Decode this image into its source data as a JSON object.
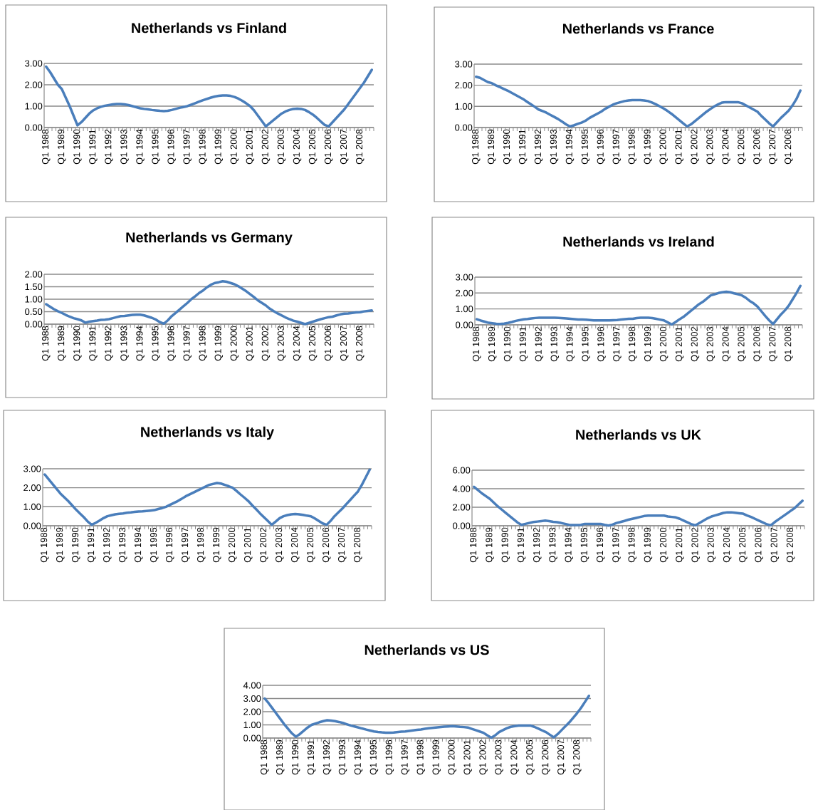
{
  "chart_data": [
    {
      "type": "line",
      "title": "Netherlands vs Finland",
      "color": "#4a7ebb",
      "grid": "y",
      "ylim": [
        0,
        3
      ],
      "yticks": [
        {
          "value": 0,
          "label": "0.00"
        },
        {
          "value": 1,
          "label": "1.00"
        },
        {
          "value": 2,
          "label": "2.00"
        },
        {
          "value": 3,
          "label": "3.00"
        }
      ],
      "categories": [
        "Q1 1988",
        null,
        null,
        null,
        "Q1 1989",
        null,
        null,
        null,
        "Q1 1990",
        null,
        null,
        null,
        "Q1 1991",
        null,
        null,
        null,
        "Q1 1992",
        null,
        null,
        null,
        "Q1 1993",
        null,
        null,
        null,
        "Q1 1994",
        null,
        null,
        null,
        "Q1 1995",
        null,
        null,
        null,
        "Q1 1996",
        null,
        null,
        null,
        "Q1 1997",
        null,
        null,
        null,
        "Q1 1998",
        null,
        null,
        null,
        "Q1 1999",
        null,
        null,
        null,
        "Q1 2000",
        null,
        null,
        null,
        "Q1 2001",
        null,
        null,
        null,
        "Q1 2002",
        null,
        null,
        null,
        "Q1 2003",
        null,
        null,
        null,
        "Q1 2004",
        null,
        null,
        null,
        "Q1 2005",
        null,
        null,
        null,
        "Q1 2006",
        null,
        null,
        null,
        "Q1 2007",
        null,
        null,
        null,
        "Q1 2008",
        null,
        null,
        null
      ],
      "values": [
        2.85,
        2.6,
        2.3,
        2.0,
        1.8,
        1.4,
        1.0,
        0.55,
        0.1,
        0.25,
        0.45,
        0.65,
        0.8,
        0.9,
        0.97,
        1.02,
        1.05,
        1.08,
        1.1,
        1.1,
        1.08,
        1.05,
        1.0,
        0.95,
        0.9,
        0.87,
        0.85,
        0.82,
        0.8,
        0.78,
        0.77,
        0.78,
        0.82,
        0.87,
        0.92,
        0.96,
        1.0,
        1.07,
        1.14,
        1.21,
        1.28,
        1.34,
        1.4,
        1.45,
        1.48,
        1.5,
        1.5,
        1.48,
        1.43,
        1.35,
        1.25,
        1.13,
        1.0,
        0.8,
        0.55,
        0.3,
        0.05,
        0.2,
        0.35,
        0.5,
        0.65,
        0.75,
        0.82,
        0.87,
        0.88,
        0.87,
        0.82,
        0.72,
        0.6,
        0.45,
        0.28,
        0.12,
        0.05,
        0.25,
        0.45,
        0.65,
        0.85,
        1.1,
        1.35,
        1.6,
        1.85,
        2.1,
        2.4,
        2.7
      ]
    },
    {
      "type": "line",
      "title": "Netherlands vs France",
      "color": "#4a7ebb",
      "grid": "y",
      "ylim": [
        0,
        3
      ],
      "yticks": [
        {
          "value": 0,
          "label": "0.00"
        },
        {
          "value": 1,
          "label": "1.00"
        },
        {
          "value": 2,
          "label": "2.00"
        },
        {
          "value": 3,
          "label": "3.00"
        }
      ],
      "categories": [
        "Q1 1988",
        null,
        null,
        null,
        "Q1 1989",
        null,
        null,
        null,
        "Q1 1990",
        null,
        null,
        null,
        "Q1 1991",
        null,
        null,
        null,
        "Q1 1992",
        null,
        null,
        null,
        "Q1 1993",
        null,
        null,
        null,
        "Q1 1994",
        null,
        null,
        null,
        "Q1 1995",
        null,
        null,
        null,
        "Q1 1996",
        null,
        null,
        null,
        "Q1 1997",
        null,
        null,
        null,
        "Q1 1998",
        null,
        null,
        null,
        "Q1 1999",
        null,
        null,
        null,
        "Q1 2000",
        null,
        null,
        null,
        "Q1 2001",
        null,
        null,
        null,
        "Q1 2002",
        null,
        null,
        null,
        "Q1 2003",
        null,
        null,
        null,
        "Q1 2004",
        null,
        null,
        null,
        "Q1 2005",
        null,
        null,
        null,
        "Q1 2006",
        null,
        null,
        null,
        "Q1 2007",
        null,
        null,
        null,
        "Q1 2008",
        null,
        null,
        null
      ],
      "values": [
        2.4,
        2.35,
        2.25,
        2.15,
        2.1,
        2.0,
        1.92,
        1.83,
        1.75,
        1.65,
        1.55,
        1.45,
        1.35,
        1.22,
        1.1,
        0.98,
        0.85,
        0.78,
        0.7,
        0.6,
        0.5,
        0.4,
        0.28,
        0.15,
        0.05,
        0.1,
        0.17,
        0.23,
        0.32,
        0.45,
        0.55,
        0.65,
        0.75,
        0.88,
        0.98,
        1.08,
        1.15,
        1.2,
        1.25,
        1.28,
        1.3,
        1.3,
        1.3,
        1.28,
        1.25,
        1.18,
        1.1,
        1.0,
        0.9,
        0.78,
        0.65,
        0.5,
        0.35,
        0.2,
        0.05,
        0.15,
        0.3,
        0.45,
        0.6,
        0.75,
        0.88,
        1.0,
        1.1,
        1.18,
        1.2,
        1.2,
        1.2,
        1.2,
        1.15,
        1.05,
        0.95,
        0.85,
        0.75,
        0.55,
        0.38,
        0.2,
        0.05,
        0.25,
        0.45,
        0.62,
        0.8,
        1.05,
        1.35,
        1.75
      ]
    },
    {
      "type": "line",
      "title": "Netherlands vs Germany",
      "color": "#4a7ebb",
      "grid": "y",
      "ylim": [
        0,
        2
      ],
      "yticks": [
        {
          "value": 0,
          "label": "0.00"
        },
        {
          "value": 0.5,
          "label": "0.50"
        },
        {
          "value": 1,
          "label": "1.00"
        },
        {
          "value": 1.5,
          "label": "1.50"
        },
        {
          "value": 2,
          "label": "2.00"
        }
      ],
      "categories": [
        "Q1 1988",
        null,
        null,
        null,
        "Q1 1989",
        null,
        null,
        null,
        "Q1 1990",
        null,
        null,
        null,
        "Q1 1991",
        null,
        null,
        null,
        "Q1 1992",
        null,
        null,
        null,
        "Q1 1993",
        null,
        null,
        null,
        "Q1 1994",
        null,
        null,
        null,
        "Q1 1995",
        null,
        null,
        null,
        "Q1 1996",
        null,
        null,
        null,
        "Q1 1997",
        null,
        null,
        null,
        "Q1 1998",
        null,
        null,
        null,
        "Q1 1999",
        null,
        null,
        null,
        "Q1 2000",
        null,
        null,
        null,
        "Q1 2001",
        null,
        null,
        null,
        "Q1 2002",
        null,
        null,
        null,
        "Q1 2003",
        null,
        null,
        null,
        "Q1 2004",
        null,
        null,
        null,
        "Q1 2005",
        null,
        null,
        null,
        "Q1 2006",
        null,
        null,
        null,
        "Q1 2007",
        null,
        null,
        null,
        "Q1 2008",
        null,
        null,
        null
      ],
      "values": [
        0.8,
        0.7,
        0.6,
        0.52,
        0.45,
        0.37,
        0.3,
        0.24,
        0.2,
        0.15,
        0.06,
        0.1,
        0.12,
        0.14,
        0.17,
        0.18,
        0.2,
        0.24,
        0.28,
        0.32,
        0.33,
        0.35,
        0.37,
        0.38,
        0.38,
        0.35,
        0.3,
        0.25,
        0.18,
        0.08,
        0.02,
        0.15,
        0.32,
        0.45,
        0.58,
        0.72,
        0.85,
        1.0,
        1.12,
        1.25,
        1.35,
        1.48,
        1.58,
        1.65,
        1.68,
        1.72,
        1.7,
        1.65,
        1.6,
        1.52,
        1.42,
        1.32,
        1.2,
        1.08,
        0.95,
        0.85,
        0.75,
        0.62,
        0.52,
        0.43,
        0.35,
        0.27,
        0.2,
        0.14,
        0.1,
        0.05,
        0.0,
        0.05,
        0.1,
        0.15,
        0.2,
        0.24,
        0.28,
        0.3,
        0.35,
        0.39,
        0.42,
        0.43,
        0.45,
        0.47,
        0.48,
        0.51,
        0.53,
        0.55
      ]
    },
    {
      "type": "line",
      "title": "Netherlands vs Ireland",
      "color": "#4a7ebb",
      "grid": "y",
      "ylim": [
        0,
        3
      ],
      "yticks": [
        {
          "value": 0,
          "label": "0.00"
        },
        {
          "value": 1,
          "label": "1.00"
        },
        {
          "value": 2,
          "label": "2.00"
        },
        {
          "value": 3,
          "label": "3.00"
        }
      ],
      "categories": [
        "Q1 1988",
        null,
        null,
        null,
        "Q1 1989",
        null,
        null,
        null,
        "Q1 1990",
        null,
        null,
        null,
        "Q1 1991",
        null,
        null,
        null,
        "Q1 1992",
        null,
        null,
        null,
        "Q1 1993",
        null,
        null,
        null,
        "Q1 1994",
        null,
        null,
        null,
        "Q1 1995",
        null,
        null,
        null,
        "Q1 1996",
        null,
        null,
        null,
        "Q1 1997",
        null,
        null,
        null,
        "Q1 1998",
        null,
        null,
        null,
        "Q1 1999",
        null,
        null,
        null,
        "Q1 2000",
        null,
        null,
        null,
        "Q1 2001",
        null,
        null,
        null,
        "Q1 2002",
        null,
        null,
        null,
        "Q1 2003",
        null,
        null,
        null,
        "Q1 2004",
        null,
        null,
        null,
        "Q1 2005",
        null,
        null,
        null,
        "Q1 2006",
        null,
        null,
        null,
        "Q1 2007",
        null,
        null,
        null,
        "Q1 2008",
        null,
        null,
        null
      ],
      "values": [
        0.35,
        0.27,
        0.2,
        0.13,
        0.1,
        0.07,
        0.05,
        0.08,
        0.12,
        0.18,
        0.25,
        0.3,
        0.35,
        0.37,
        0.4,
        0.43,
        0.45,
        0.45,
        0.45,
        0.45,
        0.45,
        0.44,
        0.42,
        0.4,
        0.38,
        0.36,
        0.34,
        0.33,
        0.32,
        0.3,
        0.28,
        0.28,
        0.28,
        0.28,
        0.28,
        0.29,
        0.3,
        0.33,
        0.36,
        0.38,
        0.38,
        0.42,
        0.45,
        0.45,
        0.45,
        0.42,
        0.38,
        0.33,
        0.28,
        0.15,
        0.02,
        0.18,
        0.35,
        0.5,
        0.7,
        0.9,
        1.1,
        1.3,
        1.45,
        1.65,
        1.85,
        1.92,
        2.0,
        2.05,
        2.08,
        2.05,
        1.98,
        1.92,
        1.85,
        1.7,
        1.5,
        1.35,
        1.15,
        0.85,
        0.55,
        0.28,
        0.05,
        0.35,
        0.65,
        0.9,
        1.2,
        1.6,
        2.0,
        2.45
      ]
    },
    {
      "type": "line",
      "title": "Netherlands vs Italy",
      "color": "#4a7ebb",
      "grid": "y",
      "ylim": [
        0,
        3
      ],
      "yticks": [
        {
          "value": 0,
          "label": "0.00"
        },
        {
          "value": 1,
          "label": "1.00"
        },
        {
          "value": 2,
          "label": "2.00"
        },
        {
          "value": 3,
          "label": "3.00"
        }
      ],
      "categories": [
        "Q1 1988",
        null,
        null,
        null,
        "Q1 1989",
        null,
        null,
        null,
        "Q1 1990",
        null,
        null,
        null,
        "Q1 1991",
        null,
        null,
        null,
        "Q1 1992",
        null,
        null,
        null,
        "Q1 1993",
        null,
        null,
        null,
        "Q1 1994",
        null,
        null,
        null,
        "Q1 1995",
        null,
        null,
        null,
        "Q1 1996",
        null,
        null,
        null,
        "Q1 1997",
        null,
        null,
        null,
        "Q1 1998",
        null,
        null,
        null,
        "Q1 1999",
        null,
        null,
        null,
        "Q1 2000",
        null,
        null,
        null,
        "Q1 2001",
        null,
        null,
        null,
        "Q1 2002",
        null,
        null,
        null,
        "Q1 2003",
        null,
        null,
        null,
        "Q1 2004",
        null,
        null,
        null,
        "Q1 2005",
        null,
        null,
        null,
        "Q1 2006",
        null,
        null,
        null,
        "Q1 2007",
        null,
        null,
        null,
        "Q1 2008",
        null,
        null,
        null
      ],
      "values": [
        2.7,
        2.45,
        2.2,
        1.95,
        1.7,
        1.5,
        1.3,
        1.08,
        0.85,
        0.65,
        0.45,
        0.22,
        0.05,
        0.15,
        0.27,
        0.4,
        0.5,
        0.55,
        0.6,
        0.63,
        0.65,
        0.68,
        0.7,
        0.73,
        0.75,
        0.76,
        0.78,
        0.8,
        0.82,
        0.88,
        0.93,
        1.0,
        1.1,
        1.2,
        1.3,
        1.42,
        1.55,
        1.65,
        1.75,
        1.85,
        1.95,
        2.05,
        2.15,
        2.2,
        2.25,
        2.22,
        2.15,
        2.08,
        2.0,
        1.83,
        1.65,
        1.48,
        1.3,
        1.08,
        0.87,
        0.65,
        0.45,
        0.25,
        0.05,
        0.22,
        0.4,
        0.5,
        0.56,
        0.6,
        0.62,
        0.6,
        0.57,
        0.53,
        0.5,
        0.38,
        0.25,
        0.12,
        0.05,
        0.25,
        0.5,
        0.7,
        0.9,
        1.13,
        1.35,
        1.58,
        1.8,
        2.15,
        2.55,
        2.95
      ]
    },
    {
      "type": "line",
      "title": "Netherlands vs UK",
      "color": "#4a7ebb",
      "grid": "y",
      "ylim": [
        0,
        6
      ],
      "yticks": [
        {
          "value": 0,
          "label": "0.00"
        },
        {
          "value": 2,
          "label": "2.00"
        },
        {
          "value": 4,
          "label": "4.00"
        },
        {
          "value": 6,
          "label": "6.00"
        }
      ],
      "categories": [
        "Q1 1988",
        null,
        null,
        null,
        "Q1 1989",
        null,
        null,
        null,
        "Q1 1990",
        null,
        null,
        null,
        "Q1 1991",
        null,
        null,
        null,
        "Q1 1992",
        null,
        null,
        null,
        "Q1 1993",
        null,
        null,
        null,
        "Q1 1994",
        null,
        null,
        null,
        "Q1 1995",
        null,
        null,
        null,
        "Q1 1996",
        null,
        null,
        null,
        "Q1 1997",
        null,
        null,
        null,
        "Q1 1998",
        null,
        null,
        null,
        "Q1 1999",
        null,
        null,
        null,
        "Q1 2000",
        null,
        null,
        null,
        "Q1 2001",
        null,
        null,
        null,
        "Q1 2002",
        null,
        null,
        null,
        "Q1 2003",
        null,
        null,
        null,
        "Q1 2004",
        null,
        null,
        null,
        "Q1 2005",
        null,
        null,
        null,
        "Q1 2006",
        null,
        null,
        null,
        "Q1 2007",
        null,
        null,
        null,
        "Q1 2008",
        null,
        null,
        null
      ],
      "values": [
        4.2,
        3.85,
        3.5,
        3.2,
        2.9,
        2.5,
        2.1,
        1.75,
        1.4,
        1.05,
        0.7,
        0.35,
        0.1,
        0.2,
        0.3,
        0.4,
        0.45,
        0.5,
        0.55,
        0.5,
        0.42,
        0.38,
        0.3,
        0.2,
        0.1,
        0.08,
        0.08,
        0.1,
        0.2,
        0.2,
        0.2,
        0.2,
        0.2,
        0.1,
        0.02,
        0.12,
        0.3,
        0.4,
        0.52,
        0.65,
        0.75,
        0.85,
        0.95,
        1.05,
        1.1,
        1.1,
        1.1,
        1.1,
        1.1,
        1.0,
        0.95,
        0.9,
        0.75,
        0.55,
        0.35,
        0.15,
        0.05,
        0.3,
        0.55,
        0.8,
        1.0,
        1.12,
        1.25,
        1.38,
        1.45,
        1.45,
        1.4,
        1.35,
        1.3,
        1.1,
        0.95,
        0.75,
        0.55,
        0.35,
        0.15,
        0.05,
        0.4,
        0.7,
        1.0,
        1.3,
        1.6,
        1.9,
        2.3,
        2.7
      ]
    },
    {
      "type": "line",
      "title": "Netherlands vs US",
      "color": "#4a7ebb",
      "grid": "y",
      "ylim": [
        0,
        4
      ],
      "yticks": [
        {
          "value": 0,
          "label": "0.00"
        },
        {
          "value": 1,
          "label": "1.00"
        },
        {
          "value": 2,
          "label": "2.00"
        },
        {
          "value": 3,
          "label": "3.00"
        },
        {
          "value": 4,
          "label": "4.00"
        }
      ],
      "categories": [
        "Q1 1988",
        null,
        null,
        null,
        "Q1 1989",
        null,
        null,
        null,
        "Q1 1990",
        null,
        null,
        null,
        "Q1 1991",
        null,
        null,
        null,
        "Q1 1992",
        null,
        null,
        null,
        "Q1 1993",
        null,
        null,
        null,
        "Q1 1994",
        null,
        null,
        null,
        "Q1 1995",
        null,
        null,
        null,
        "Q1 1996",
        null,
        null,
        null,
        "Q1 1997",
        null,
        null,
        null,
        "Q1 1998",
        null,
        null,
        null,
        "Q1 1999",
        null,
        null,
        null,
        "Q1 2000",
        null,
        null,
        null,
        "Q1 2001",
        null,
        null,
        null,
        "Q1 2002",
        null,
        null,
        null,
        "Q1 2003",
        null,
        null,
        null,
        "Q1 2004",
        null,
        null,
        null,
        "Q1 2005",
        null,
        null,
        null,
        "Q1 2006",
        null,
        null,
        null,
        "Q1 2007",
        null,
        null,
        null,
        "Q1 2008",
        null,
        null,
        null
      ],
      "values": [
        3.0,
        2.65,
        2.25,
        1.85,
        1.45,
        1.05,
        0.7,
        0.35,
        0.1,
        0.3,
        0.55,
        0.8,
        1.0,
        1.1,
        1.2,
        1.28,
        1.35,
        1.32,
        1.28,
        1.22,
        1.15,
        1.05,
        0.95,
        0.88,
        0.8,
        0.72,
        0.64,
        0.57,
        0.5,
        0.46,
        0.43,
        0.41,
        0.4,
        0.42,
        0.45,
        0.48,
        0.5,
        0.54,
        0.58,
        0.62,
        0.65,
        0.7,
        0.74,
        0.77,
        0.8,
        0.83,
        0.86,
        0.88,
        0.9,
        0.88,
        0.85,
        0.83,
        0.8,
        0.7,
        0.6,
        0.5,
        0.4,
        0.2,
        0.02,
        0.2,
        0.45,
        0.6,
        0.75,
        0.85,
        0.9,
        0.95,
        0.95,
        0.95,
        0.95,
        0.85,
        0.72,
        0.58,
        0.45,
        0.25,
        0.05,
        0.3,
        0.6,
        0.9,
        1.2,
        1.55,
        1.9,
        2.3,
        2.75,
        3.2
      ]
    }
  ]
}
